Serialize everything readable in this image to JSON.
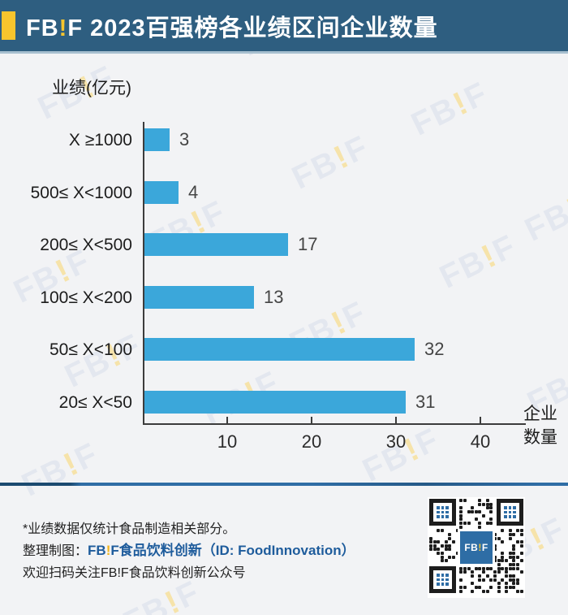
{
  "header": {
    "brand_fb": "FB",
    "brand_excl": "!",
    "brand_f": "F",
    "title": "2023百强榜各业绩区间企业数量"
  },
  "chart_data": {
    "type": "bar",
    "orientation": "horizontal",
    "title": "FB!F 2023百强榜各业绩区间企业数量",
    "categories": [
      "X ≥1000",
      "500≤ X<1000",
      "200≤ X<500",
      "100≤ X<200",
      "50≤ X<100",
      "20≤ X<50"
    ],
    "values": [
      3,
      4,
      17,
      13,
      32,
      31
    ],
    "ylabel": "业绩(亿元)",
    "xlabel": "企业数量",
    "xlabel_line1": "企业",
    "xlabel_line2": "数量",
    "xticks": [
      10,
      20,
      30,
      40
    ],
    "xlim": [
      0,
      45
    ],
    "grid": false,
    "legend": "none",
    "bar_color": "#3ba7da"
  },
  "watermark": {
    "fb": "FB",
    "excl": "!",
    "f": "F"
  },
  "footer": {
    "note1": "*业绩数据仅统计食品制造相关部分。",
    "credit_prefix": "整理制图：",
    "credit_brand_fb": "FB",
    "credit_brand_excl": "!",
    "credit_brand_f": "F",
    "credit_rest": "食品饮料创新（ID: FoodInnovation）",
    "note3": "欢迎扫码关注FB!F食品饮料创新公众号",
    "qr_logo_fb": "FB",
    "qr_logo_excl": "!",
    "qr_logo_f": "F"
  },
  "colors": {
    "header_bg": "#2e5e80",
    "accent_yellow": "#f7c52d",
    "bar_blue": "#3ba7da",
    "footer_line_blue": "#2f6da5",
    "credit_blue": "#1e5c9c",
    "page_bg": "#f2f3f5"
  }
}
